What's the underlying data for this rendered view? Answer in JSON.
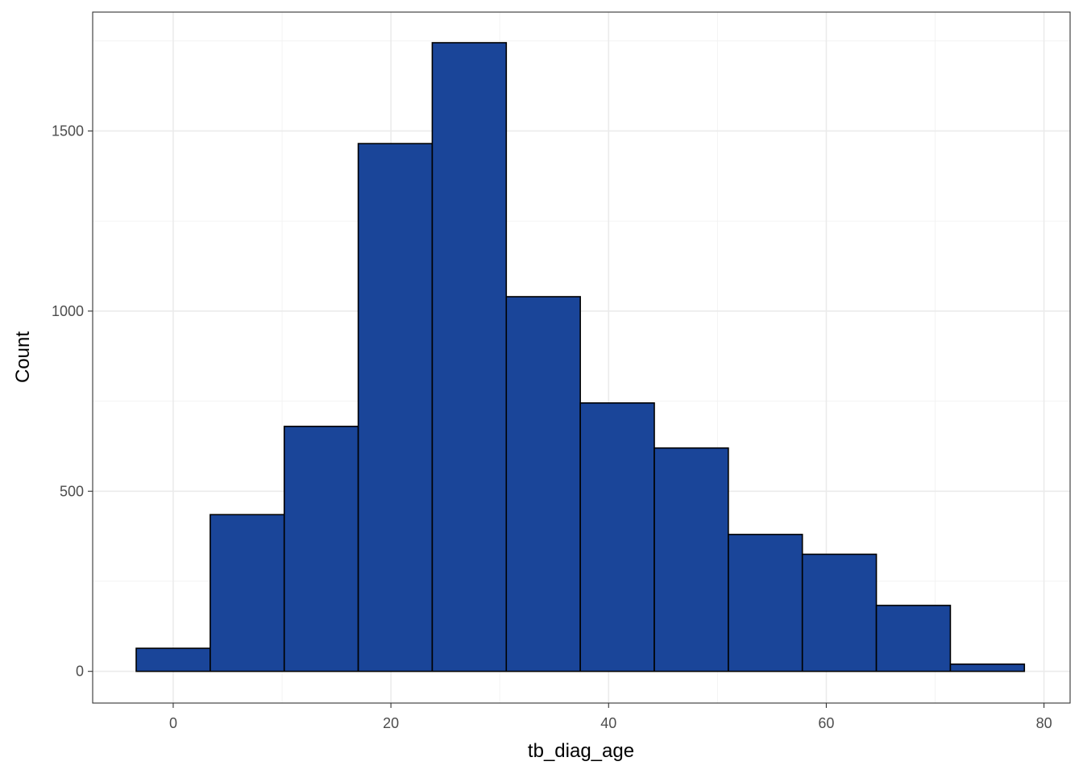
{
  "chart_data": {
    "type": "bar",
    "xlabel": "tb_diag_age",
    "ylabel": "Count",
    "xlim": [
      -7.4,
      82.4
    ],
    "ylim": [
      -88,
      1830
    ],
    "x_ticks": [
      0,
      20,
      40,
      60,
      80
    ],
    "y_ticks": [
      0,
      500,
      1000,
      1500
    ],
    "grid": true,
    "bar_fill": "#1a4599",
    "bar_outline": "#000000",
    "bins": [
      {
        "x0": -3.4,
        "x1": 3.4,
        "value": 64
      },
      {
        "x0": 3.4,
        "x1": 10.2,
        "value": 435
      },
      {
        "x0": 10.2,
        "x1": 17.0,
        "value": 680
      },
      {
        "x0": 17.0,
        "x1": 23.8,
        "value": 1465
      },
      {
        "x0": 23.8,
        "x1": 30.6,
        "value": 1745
      },
      {
        "x0": 30.6,
        "x1": 37.4,
        "value": 1040
      },
      {
        "x0": 37.4,
        "x1": 44.2,
        "value": 745
      },
      {
        "x0": 44.2,
        "x1": 51.0,
        "value": 620
      },
      {
        "x0": 51.0,
        "x1": 57.8,
        "value": 380
      },
      {
        "x0": 57.8,
        "x1": 64.6,
        "value": 325
      },
      {
        "x0": 64.6,
        "x1": 71.4,
        "value": 183
      },
      {
        "x0": 71.4,
        "x1": 78.2,
        "value": 20
      }
    ]
  }
}
